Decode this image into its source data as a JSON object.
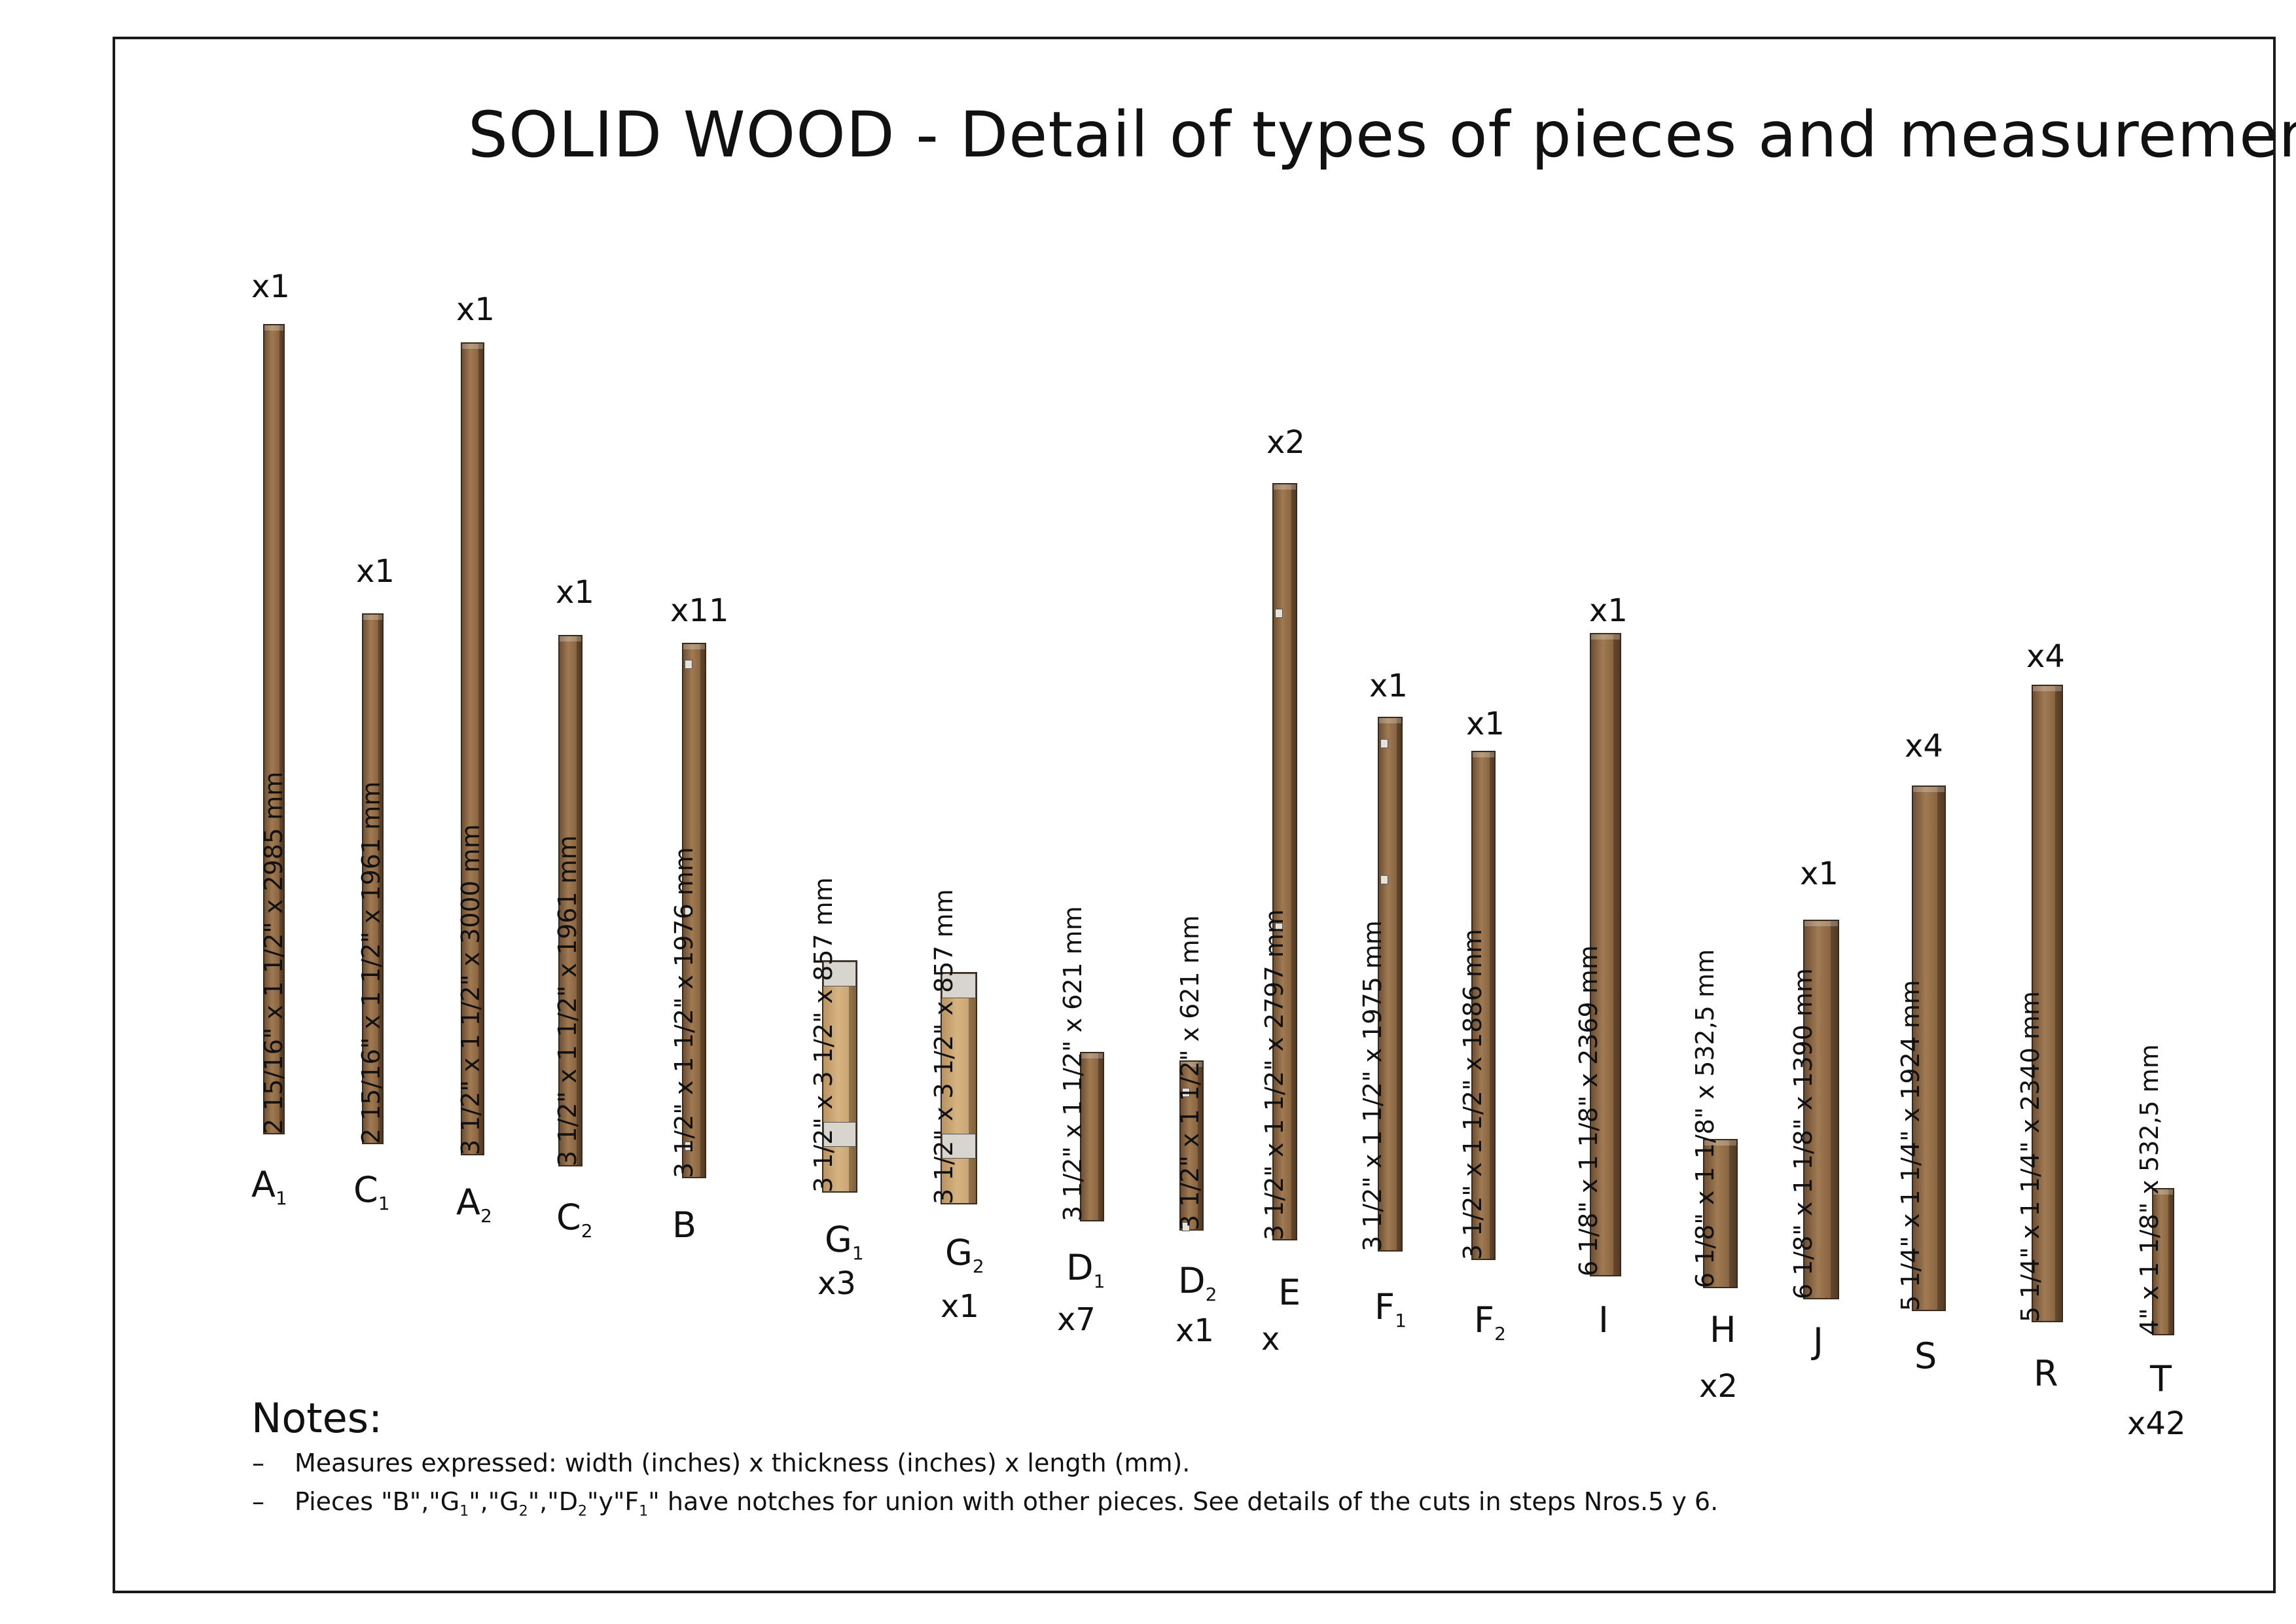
{
  "title": "SOLID WOOD - Detail of types of pieces and measurements",
  "notes_heading": "Notes:",
  "notes": [
    "Measures expressed: width (inches) x thickness (inches) x length (mm).",
    "Pieces \"B\",\"G1\",\"G2\",\"D2\"y\"F1\" have notches for union with other pieces. See details of the cuts in steps Nros.5 y 6."
  ],
  "pieces": [
    {
      "label": "A",
      "sub": "1",
      "qty": "x1",
      "dims": "2 15/16\" x 1 1/2\" x 2985 mm"
    },
    {
      "label": "C",
      "sub": "1",
      "qty": "x1",
      "dims": "2 15/16\" x 1 1/2\" x 1961 mm"
    },
    {
      "label": "A",
      "sub": "2",
      "qty": "x1",
      "dims": "3 1/2\" x 1 1/2\" x 3000 mm"
    },
    {
      "label": "C",
      "sub": "2",
      "qty": "x1",
      "dims": "3 1/2\" x 1 1/2\" x 1961 mm"
    },
    {
      "label": "B",
      "sub": "",
      "qty": "x11",
      "dims": "3 1/2\" x 1 1/2\" x 1976 mm"
    },
    {
      "label": "G",
      "sub": "1",
      "qty": "x3",
      "dims": "3 1/2\" x 3 1/2\" x 857 mm"
    },
    {
      "label": "G",
      "sub": "2",
      "qty": "x1",
      "dims": "3 1/2\" x 3 1/2\" x 857 mm"
    },
    {
      "label": "D",
      "sub": "1",
      "qty": "x7",
      "dims": "3 1/2\" x 1 1/2\" x 621 mm"
    },
    {
      "label": "D",
      "sub": "2",
      "qty": "x1",
      "dims": "3 1/2\" x 1 1/2\" x 621 mm"
    },
    {
      "label": "E",
      "sub": "",
      "qty": "x2",
      "qty2": "x",
      "dims": "3 1/2\" x 1 1/2\" x 2797 mm"
    },
    {
      "label": "F",
      "sub": "1",
      "qty": "x1",
      "dims": "3 1/2\" x 1 1/2\" x 1975 mm"
    },
    {
      "label": "F",
      "sub": "2",
      "qty": "x1",
      "dims": "3 1/2\" x 1 1/2\" x 1886 mm"
    },
    {
      "label": "I",
      "sub": "",
      "qty": "x1",
      "dims": "6 1/8\" x 1 1/8\" x 2369 mm"
    },
    {
      "label": "H",
      "sub": "",
      "qty": "x2",
      "dims": "6 1/8\" x 1 1/8\" x 532,5 mm"
    },
    {
      "label": "J",
      "sub": "",
      "qty": "x1",
      "dims": "6 1/8\" x 1 1/8\" x 1390 mm"
    },
    {
      "label": "S",
      "sub": "",
      "qty": "x4",
      "dims": "5 1/4\" x 1 1/4\" x 1924 mm"
    },
    {
      "label": "R",
      "sub": "",
      "qty": "x4",
      "dims": "5 1/4\" x 1 1/4\" x 2340 mm"
    },
    {
      "label": "T",
      "sub": "",
      "qty": "x42",
      "dims": "4\" x 1 1/8\" x 532,5 mm"
    }
  ]
}
